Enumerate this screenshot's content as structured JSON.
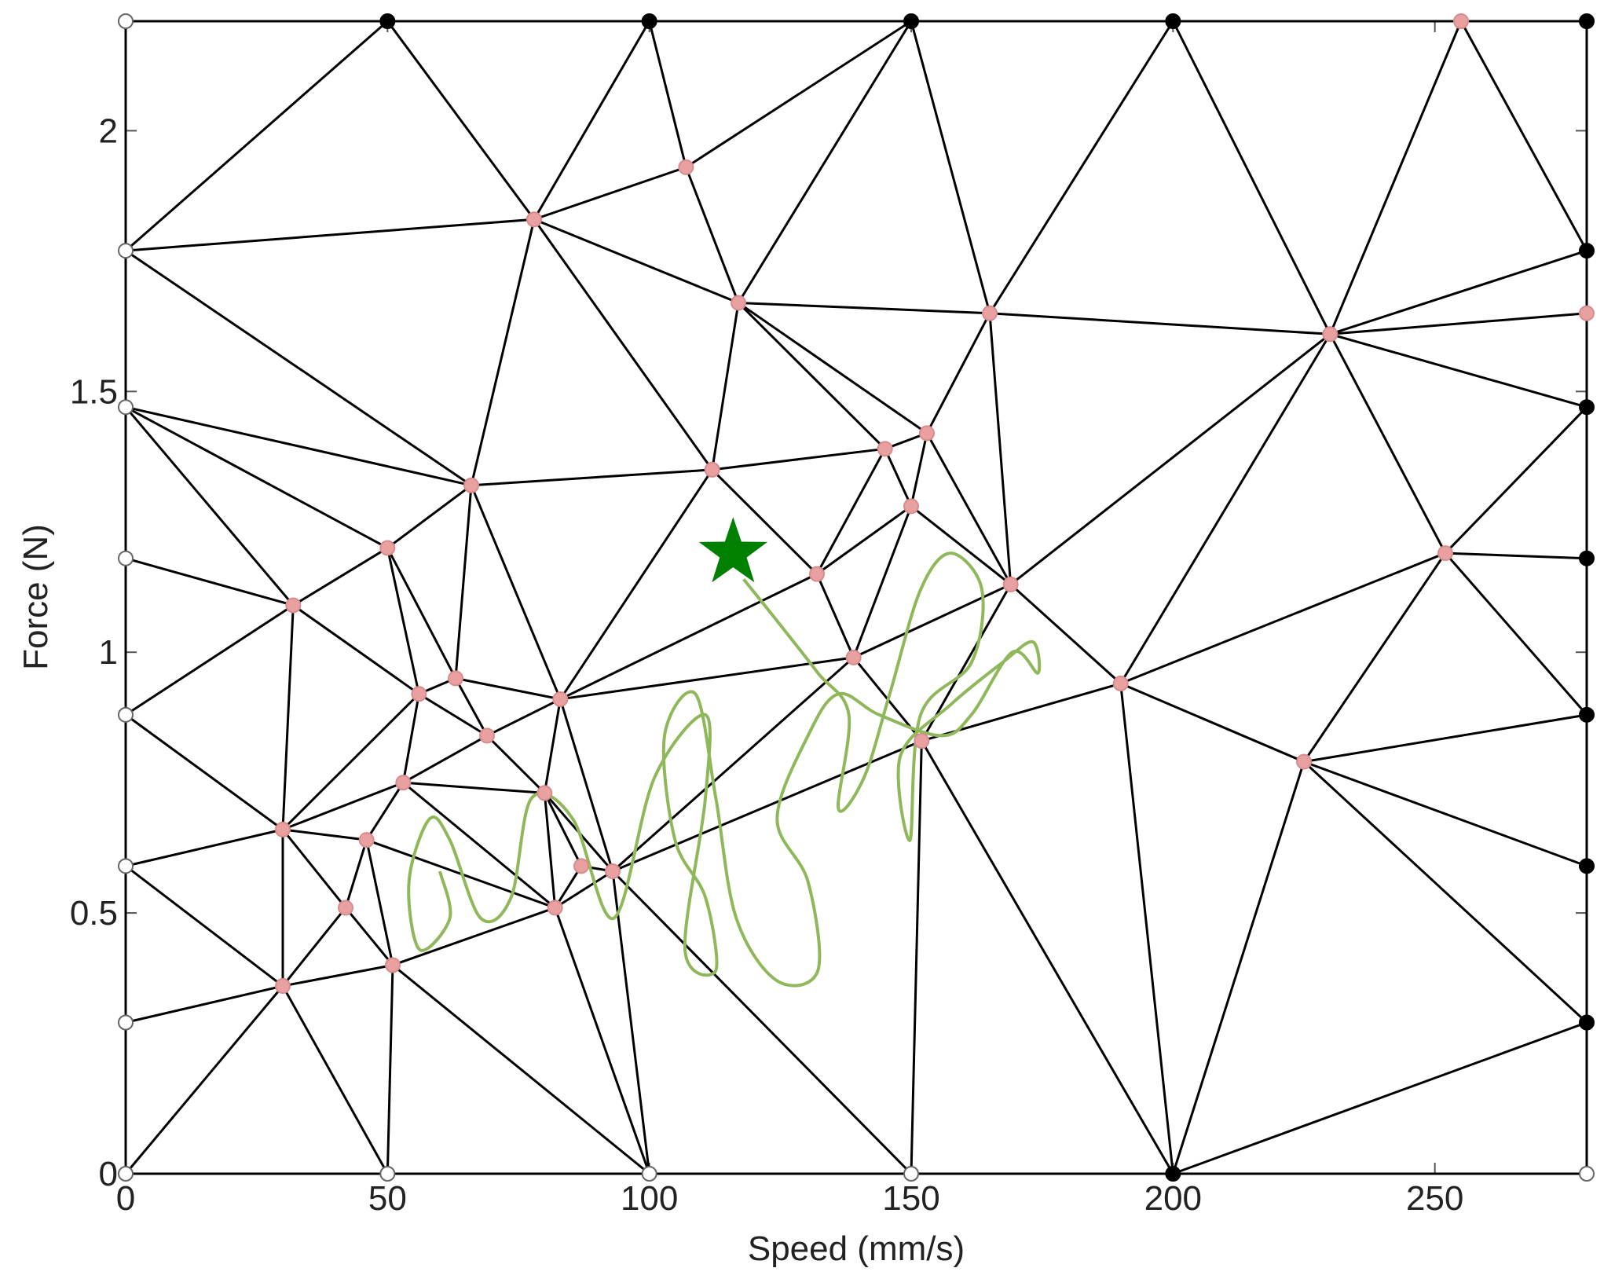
{
  "chart_data": {
    "type": "mesh",
    "xlabel": "Speed (mm/s)",
    "ylabel": "Force (N)",
    "xlim": [
      0,
      279
    ],
    "ylim": [
      0,
      2.21
    ],
    "xticks": [
      0,
      50,
      100,
      150,
      200,
      250
    ],
    "yticks": [
      0,
      0.5,
      1,
      1.5,
      2
    ],
    "edge_color": "#000000",
    "series": [
      {
        "marker": "hollow",
        "color": "#ffffff",
        "x": [
          0,
          0,
          0,
          0,
          0,
          0,
          0,
          0,
          50,
          100,
          150,
          279
        ],
        "y": [
          2.21,
          1.77,
          1.47,
          1.18,
          0.88,
          0.59,
          0.29,
          0,
          0,
          0,
          0,
          0
        ]
      },
      {
        "marker": "filled",
        "color": "#000000",
        "x": [
          50,
          100,
          150,
          200,
          279,
          279,
          279,
          279,
          279,
          279,
          279,
          200
        ],
        "y": [
          2.21,
          2.21,
          2.21,
          2.21,
          2.21,
          1.77,
          1.47,
          1.18,
          0.88,
          0.59,
          0.29,
          0
        ]
      },
      {
        "marker": "filled",
        "color": "#e8a0a0",
        "x": [
          255,
          107,
          78,
          117,
          165,
          230,
          279,
          145,
          153,
          112,
          66,
          150,
          50,
          132,
          169,
          252,
          32,
          139,
          190,
          63,
          56,
          83,
          69,
          152,
          225,
          53,
          80,
          30,
          46,
          87,
          93,
          42,
          82,
          51,
          30
        ],
        "y": [
          2.21,
          1.93,
          1.83,
          1.67,
          1.65,
          1.61,
          1.65,
          1.39,
          1.42,
          1.35,
          1.32,
          1.28,
          1.2,
          1.15,
          1.13,
          1.19,
          1.09,
          0.99,
          0.94,
          0.95,
          0.92,
          0.91,
          0.84,
          0.83,
          0.79,
          0.75,
          0.73,
          0.66,
          0.64,
          0.59,
          0.58,
          0.51,
          0.51,
          0.4,
          0.36
        ]
      }
    ],
    "trace": {
      "color": "#8fb85a",
      "x": [
        118.0,
        124.4,
        132.2,
        138.1,
        136.1,
        141.0,
        145.9,
        151.8,
        157.6,
        163.5,
        161.5,
        151.8,
        149.8,
        147.9,
        157.6,
        167.4,
        173.2,
        174.2,
        169.3,
        161.5,
        155.7,
        143.9,
        136.1,
        130.3,
        124.4,
        130.3,
        132.2,
        124.4,
        116.6,
        112.7,
        108.8,
        102.9,
        104.9,
        110.7,
        112.7,
        106.8,
        110.7,
        110.7,
        101.0,
        93.2,
        85.4,
        77.5,
        73.6,
        67.8,
        61.9,
        58.0,
        54.1,
        56.1,
        61.9,
        60.0
      ],
      "y": [
        1.14,
        1.06,
        0.96,
        0.88,
        0.7,
        0.76,
        0.92,
        1.12,
        1.19,
        1.12,
        0.98,
        0.88,
        0.64,
        0.8,
        0.9,
        0.98,
        1.02,
        0.96,
        1.0,
        0.88,
        0.84,
        0.88,
        0.92,
        0.84,
        0.68,
        0.56,
        0.39,
        0.37,
        0.49,
        0.72,
        0.92,
        0.84,
        0.64,
        0.53,
        0.39,
        0.43,
        0.72,
        0.88,
        0.76,
        0.49,
        0.68,
        0.72,
        0.53,
        0.49,
        0.64,
        0.68,
        0.56,
        0.43,
        0.49,
        0.58
      ]
    },
    "target": {
      "marker": "star",
      "color": "#008000",
      "x": 116,
      "y": 1.19
    }
  }
}
